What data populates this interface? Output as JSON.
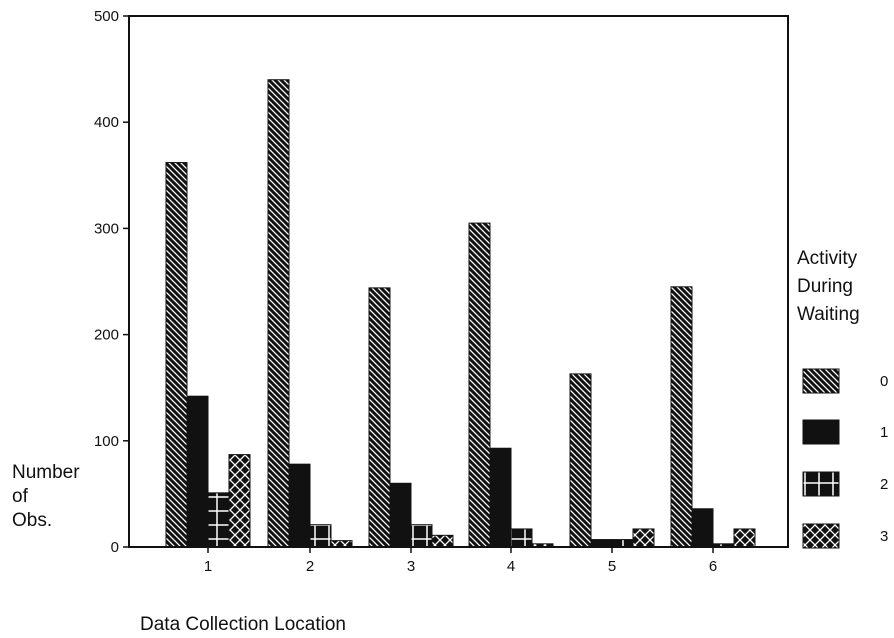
{
  "chart_data": {
    "type": "bar",
    "xlabel": "Data Collection Location",
    "ylabel": [
      "Number",
      "of",
      "Obs."
    ],
    "categories": [
      "1",
      "2",
      "3",
      "4",
      "5",
      "6"
    ],
    "ylim": [
      0,
      500
    ],
    "yticks": [
      0,
      100,
      200,
      300,
      400,
      500
    ],
    "legend": {
      "title": [
        "Activity",
        "During",
        "Waiting"
      ],
      "placement": "right"
    },
    "series": [
      {
        "name": "0",
        "pattern": "diag",
        "values": [
          362,
          440,
          244,
          305,
          163,
          245
        ]
      },
      {
        "name": "1",
        "pattern": "solid",
        "values": [
          142,
          78,
          60,
          93,
          7,
          36
        ]
      },
      {
        "name": "2",
        "pattern": "cross",
        "values": [
          51,
          21,
          21,
          17,
          7,
          3
        ]
      },
      {
        "name": "3",
        "pattern": "xhatch",
        "values": [
          87,
          6,
          11,
          3,
          17,
          17
        ]
      }
    ],
    "colors": {
      "ink": "#111111",
      "background": "#ffffff"
    }
  }
}
